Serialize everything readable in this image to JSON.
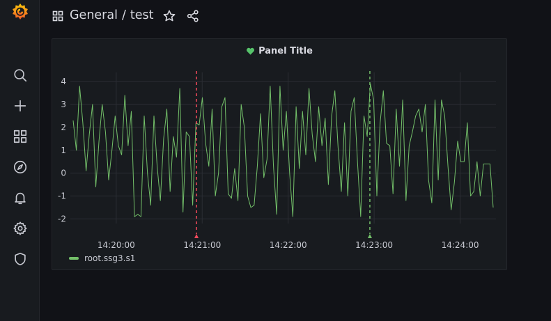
{
  "breadcrumb": {
    "folder": "General",
    "separator": "/",
    "dashboard": "test"
  },
  "sidebar": {
    "items": [
      {
        "name": "search",
        "icon": "search-icon"
      },
      {
        "name": "create",
        "icon": "plus-icon"
      },
      {
        "name": "dashboards",
        "icon": "dashboards-grid-icon"
      },
      {
        "name": "explore",
        "icon": "compass-icon"
      },
      {
        "name": "alerting",
        "icon": "bell-icon"
      },
      {
        "name": "configuration",
        "icon": "gear-icon"
      },
      {
        "name": "server-admin",
        "icon": "shield-icon"
      }
    ]
  },
  "panel": {
    "title": "Panel Title",
    "title_icon": "heart-icon",
    "title_icon_color": "#56c26a"
  },
  "colors": {
    "series": "#73bf69",
    "annotation_red": "#f2495c",
    "annotation_green": "#73bf69",
    "grid": "#2b2e34"
  },
  "chart_data": {
    "type": "line",
    "x_ticks": [
      "14:20:00",
      "14:21:00",
      "14:22:00",
      "14:23:00",
      "14:24:00"
    ],
    "y_ticks": [
      4,
      3,
      2,
      1,
      0,
      -1,
      -2
    ],
    "ylim": [
      -2.2,
      4.4
    ],
    "xlim": [
      "14:19:28",
      "14:24:25"
    ],
    "annotations": [
      {
        "time": "14:20:56",
        "color": "red"
      },
      {
        "time": "14:22:57",
        "color": "green"
      }
    ],
    "series": [
      {
        "name": "root.ssg3.s1",
        "values": [
          2.3,
          1.0,
          3.8,
          2.2,
          0.1,
          1.7,
          3.0,
          -0.6,
          1.4,
          3.0,
          1.8,
          -0.3,
          1.0,
          2.5,
          1.2,
          0.8,
          3.4,
          1.2,
          2.7,
          -1.9,
          -1.8,
          -1.9,
          2.5,
          0.0,
          -1.4,
          2.5,
          0.3,
          -1.2,
          1.5,
          2.8,
          -0.8,
          1.6,
          0.7,
          3.7,
          -1.7,
          1.8,
          1.6,
          -1.4,
          2.2,
          2.1,
          3.3,
          1.3,
          0.3,
          2.8,
          -1.0,
          0.0,
          2.9,
          3.3,
          -0.9,
          -1.1,
          0.2,
          -1.2,
          3.0,
          2.0,
          -1.0,
          -1.5,
          -1.4,
          0.3,
          2.6,
          -0.2,
          0.6,
          3.8,
          0.3,
          -1.8,
          3.8,
          1.0,
          2.7,
          0.0,
          -1.9,
          2.9,
          0.2,
          2.7,
          0.8,
          3.7,
          1.7,
          0.5,
          2.9,
          1.2,
          2.4,
          -0.5,
          2.5,
          3.6,
          1.1,
          -0.8,
          2.2,
          -1.0,
          2.7,
          3.3,
          0.5,
          -1.9,
          2.5,
          1.6,
          3.9,
          3.2,
          -1.0,
          2.2,
          3.6,
          1.3,
          1.2,
          -0.9,
          2.8,
          0.3,
          3.2,
          -1.2,
          1.2,
          1.8,
          2.5,
          2.8,
          1.8,
          3.0,
          -0.3,
          -1.3,
          3.2,
          -0.3,
          3.2,
          2.5,
          0.3,
          -1.6,
          -0.4,
          1.4,
          0.5,
          0.5,
          2.2,
          -1.0,
          -0.8,
          0.5,
          -1.0,
          0.4,
          0.4,
          0.4,
          -1.5
        ]
      }
    ]
  }
}
